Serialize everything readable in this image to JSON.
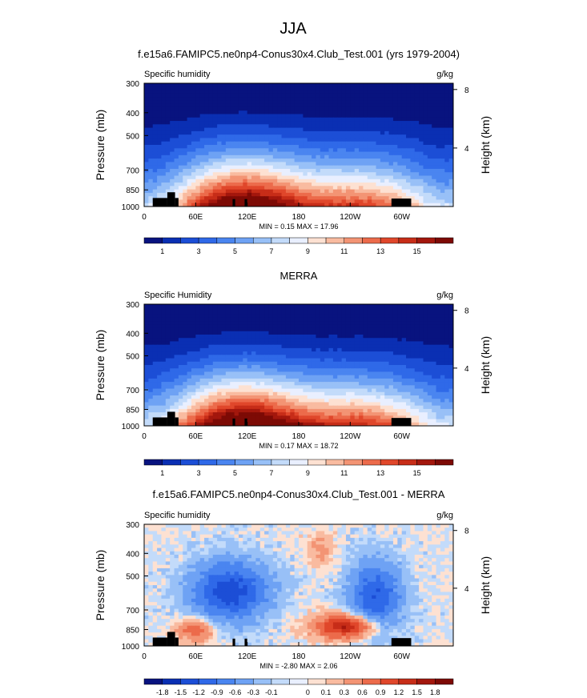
{
  "figure": {
    "season": "JJA",
    "case_title": "f.e15a6.FAMIPC5.ne0np4-Conus30x4.Club_Test.001 (yrs 1979-2004)",
    "obs_title": "MERRA",
    "diff_title": "f.e15a6.FAMIPC5.ne0np4-Conus30x4.Club_Test.001 - MERRA"
  },
  "chart_data": [
    {
      "type": "heatmap",
      "panel": "model",
      "left_label": "Specific humidity",
      "units": "g/kg",
      "ylabel": "Pressure (mb)",
      "ylabel_right": "Height (km)",
      "y_ticks": [
        "300",
        "400",
        "500",
        "700",
        "850",
        "1000"
      ],
      "y_tick_values": [
        300,
        400,
        500,
        700,
        850,
        1000
      ],
      "height_ticks": [
        "8",
        "4"
      ],
      "height_tick_values": [
        8,
        4
      ],
      "x_ticks": [
        "0",
        "60E",
        "120E",
        "180",
        "120W",
        "60W"
      ],
      "x_tick_values": [
        0,
        60,
        120,
        180,
        240,
        300
      ],
      "xlim": [
        0,
        360
      ],
      "ylim": [
        1000,
        300
      ],
      "stats": "MIN =  0.15  MAX =  17.96",
      "min": 0.15,
      "max": 17.96,
      "colorbar_labels": [
        "1",
        "3",
        "5",
        "7",
        "9",
        "11",
        "13",
        "15"
      ]
    },
    {
      "type": "heatmap",
      "panel": "obs",
      "left_label": "Specific Humidity",
      "units": "g/kg",
      "ylabel": "Pressure (mb)",
      "ylabel_right": "Height (km)",
      "y_ticks": [
        "300",
        "400",
        "500",
        "700",
        "850",
        "1000"
      ],
      "y_tick_values": [
        300,
        400,
        500,
        700,
        850,
        1000
      ],
      "height_ticks": [
        "8",
        "4"
      ],
      "height_tick_values": [
        8,
        4
      ],
      "x_ticks": [
        "0",
        "60E",
        "120E",
        "180",
        "120W",
        "60W"
      ],
      "x_tick_values": [
        0,
        60,
        120,
        180,
        240,
        300
      ],
      "xlim": [
        0,
        360
      ],
      "ylim": [
        1000,
        300
      ],
      "stats": "MIN =  0.17  MAX =  18.72",
      "min": 0.17,
      "max": 18.72,
      "colorbar_labels": [
        "1",
        "3",
        "5",
        "7",
        "9",
        "11",
        "13",
        "15"
      ]
    },
    {
      "type": "heatmap",
      "panel": "diff",
      "left_label": "Specific humidity",
      "units": "g/kg",
      "ylabel": "Pressure (mb)",
      "ylabel_right": "Height (km)",
      "y_ticks": [
        "300",
        "400",
        "500",
        "700",
        "850",
        "1000"
      ],
      "y_tick_values": [
        300,
        400,
        500,
        700,
        850,
        1000
      ],
      "height_ticks": [
        "8",
        "4"
      ],
      "height_tick_values": [
        8,
        4
      ],
      "x_ticks": [
        "0",
        "60E",
        "120E",
        "180",
        "120W",
        "60W"
      ],
      "x_tick_values": [
        0,
        60,
        120,
        180,
        240,
        300
      ],
      "xlim": [
        0,
        360
      ],
      "ylim": [
        1000,
        300
      ],
      "stats": "MIN = -2.80  MAX =  2.06",
      "min": -2.8,
      "max": 2.06,
      "colorbar_labels": [
        "-1.8",
        "-1.5",
        "-1.2",
        "-0.9",
        "-0.6",
        "-0.3",
        "-0.1",
        "0",
        "0.1",
        "0.3",
        "0.6",
        "0.9",
        "1.2",
        "1.5",
        "1.8"
      ]
    }
  ],
  "palettes": {
    "sequential": [
      "#08137f",
      "#0a2fb3",
      "#1c4ed6",
      "#2f69e8",
      "#4a85f0",
      "#6ea2f4",
      "#98c0f7",
      "#c3dbfa",
      "#e9efff",
      "#fde1d2",
      "#f9bba0",
      "#f39474",
      "#ec6b4b",
      "#e0472b",
      "#c72d18",
      "#a3170d",
      "#7d0a05"
    ],
    "diverging": [
      "#08137f",
      "#0a2fb3",
      "#1c4ed6",
      "#2f69e8",
      "#4a85f0",
      "#6ea2f4",
      "#98c0f7",
      "#c3dbfa",
      "#e9efff",
      "#fde1d2",
      "#f9bba0",
      "#f39474",
      "#ec6b4b",
      "#e0472b",
      "#c72d18",
      "#a3170d",
      "#7d0a05"
    ],
    "terrain": "#000000"
  }
}
